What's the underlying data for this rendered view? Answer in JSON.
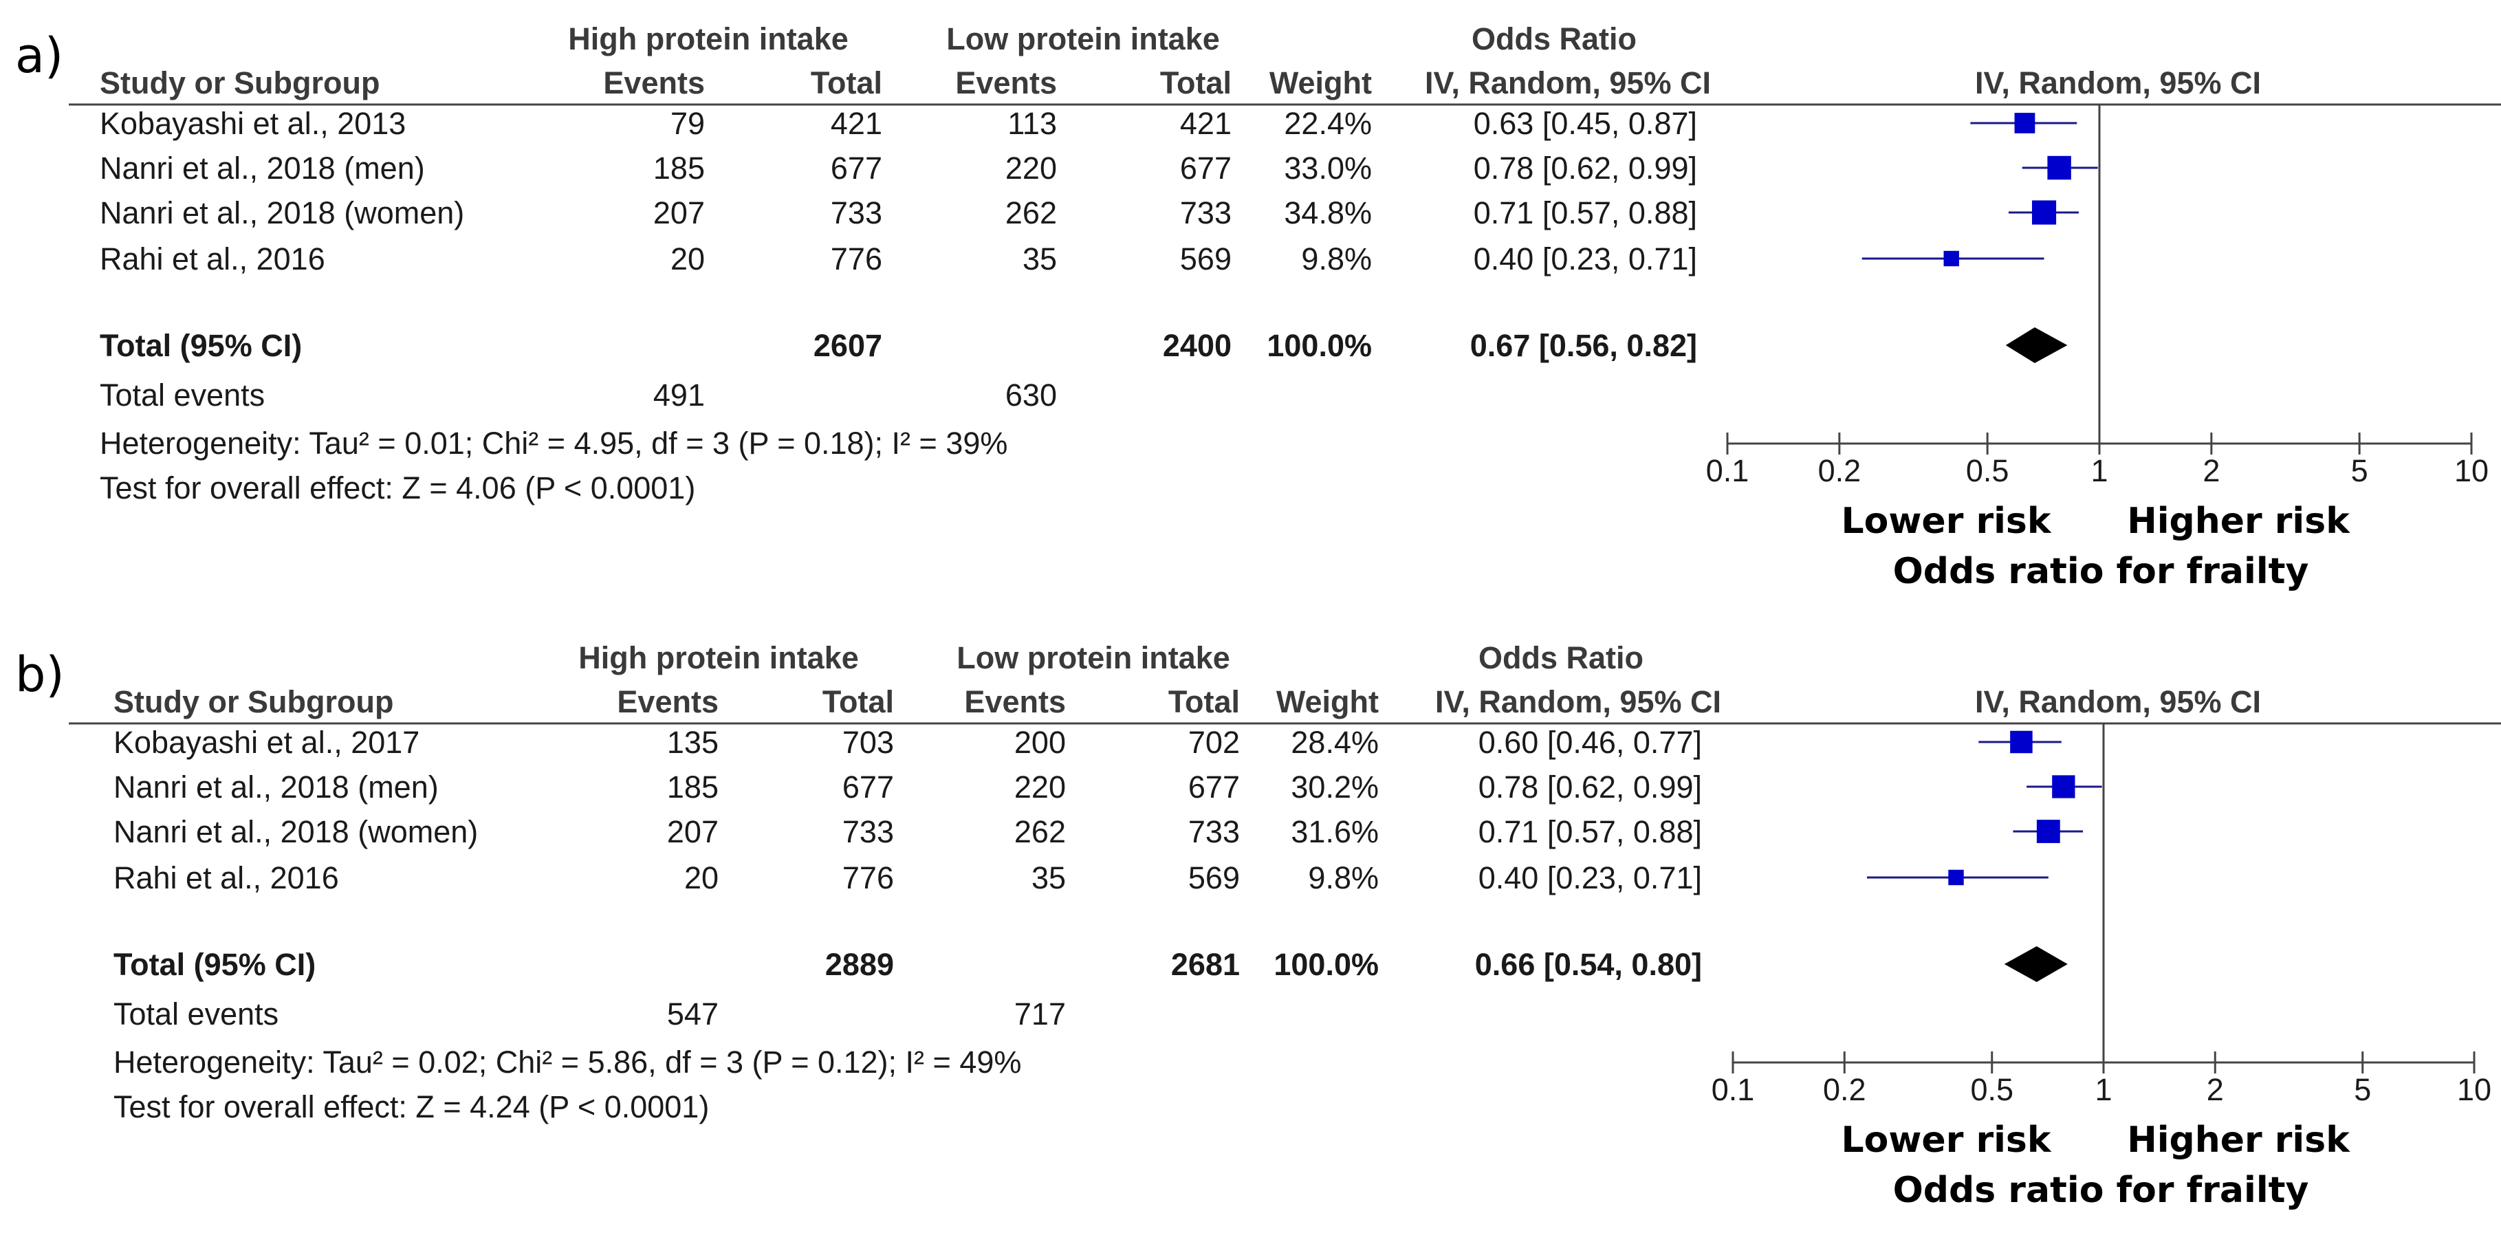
{
  "chart_data": [
    {
      "type": "forest",
      "panel_label": "a)",
      "header": {
        "group_high": "High protein intake",
        "group_low": "Low protein intake",
        "effect_title": "Odds Ratio",
        "study_col": "Study or Subgroup",
        "events_high": "Events",
        "total_high": "Total",
        "events_low": "Events",
        "total_low": "Total",
        "weight": "Weight",
        "method": "IV, Random, 95% CI",
        "plot_method": "IV, Random, 95% CI"
      },
      "studies": [
        {
          "name": "Kobayashi et al., 2013",
          "events_high": "79",
          "total_high": "421",
          "events_low": "113",
          "total_low": "421",
          "weight": "22.4%",
          "ci_text": "0.63 [0.45, 0.87]",
          "or": 0.63,
          "lo": 0.45,
          "hi": 0.87,
          "w": 22.4
        },
        {
          "name": "Nanri et al., 2018 (men)",
          "events_high": "185",
          "total_high": "677",
          "events_low": "220",
          "total_low": "677",
          "weight": "33.0%",
          "ci_text": "0.78 [0.62, 0.99]",
          "or": 0.78,
          "lo": 0.62,
          "hi": 0.99,
          "w": 33.0
        },
        {
          "name": "Nanri et al., 2018 (women)",
          "events_high": "207",
          "total_high": "733",
          "events_low": "262",
          "total_low": "733",
          "weight": "34.8%",
          "ci_text": "0.71 [0.57, 0.88]",
          "or": 0.71,
          "lo": 0.57,
          "hi": 0.88,
          "w": 34.8
        },
        {
          "name": "Rahi et al., 2016",
          "events_high": "20",
          "total_high": "776",
          "events_low": "35",
          "total_low": "569",
          "weight": "9.8%",
          "ci_text": "0.40 [0.23, 0.71]",
          "or": 0.4,
          "lo": 0.23,
          "hi": 0.71,
          "w": 9.8
        }
      ],
      "total": {
        "name": "Total (95% CI)",
        "total_high": "2607",
        "total_low": "2400",
        "weight": "100.0%",
        "ci_text": "0.67 [0.56, 0.82]",
        "or": 0.67,
        "lo": 0.56,
        "hi": 0.82
      },
      "total_events": {
        "label": "Total events",
        "high": "491",
        "low": "630"
      },
      "heterogeneity": "Heterogeneity: Tau² = 0.01; Chi² = 4.95, df = 3 (P = 0.18); I² = 39%",
      "overall_effect": "Test for overall effect: Z = 4.06 (P < 0.0001)",
      "x_axis": {
        "scale": "log",
        "ticks": [
          0.1,
          0.2,
          0.5,
          1,
          2,
          5,
          10
        ],
        "tick_labels": [
          "0.1",
          "0.2",
          "0.5",
          "1",
          "2",
          "5",
          "10"
        ]
      },
      "favours_left": "Lower risk",
      "favours_right": "Higher risk",
      "xlabel": "Odds ratio for frailty"
    },
    {
      "type": "forest",
      "panel_label": "b)",
      "header": {
        "group_high": "High protein intake",
        "group_low": "Low protein intake",
        "effect_title": "Odds Ratio",
        "study_col": "Study or Subgroup",
        "events_high": "Events",
        "total_high": "Total",
        "events_low": "Events",
        "total_low": "Total",
        "weight": "Weight",
        "method": "IV, Random, 95% CI",
        "plot_method": "IV, Random, 95% CI"
      },
      "studies": [
        {
          "name": "Kobayashi et al., 2017",
          "events_high": "135",
          "total_high": "703",
          "events_low": "200",
          "total_low": "702",
          "weight": "28.4%",
          "ci_text": "0.60 [0.46, 0.77]",
          "or": 0.6,
          "lo": 0.46,
          "hi": 0.77,
          "w": 28.4
        },
        {
          "name": "Nanri et al., 2018 (men)",
          "events_high": "185",
          "total_high": "677",
          "events_low": "220",
          "total_low": "677",
          "weight": "30.2%",
          "ci_text": "0.78 [0.62, 0.99]",
          "or": 0.78,
          "lo": 0.62,
          "hi": 0.99,
          "w": 30.2
        },
        {
          "name": "Nanri et al., 2018 (women)",
          "events_high": "207",
          "total_high": "733",
          "events_low": "262",
          "total_low": "733",
          "weight": "31.6%",
          "ci_text": "0.71 [0.57, 0.88]",
          "or": 0.71,
          "lo": 0.57,
          "hi": 0.88,
          "w": 31.6
        },
        {
          "name": "Rahi et al., 2016",
          "events_high": "20",
          "total_high": "776",
          "events_low": "35",
          "total_low": "569",
          "weight": "9.8%",
          "ci_text": "0.40 [0.23, 0.71]",
          "or": 0.4,
          "lo": 0.23,
          "hi": 0.71,
          "w": 9.8
        }
      ],
      "total": {
        "name": "Total (95% CI)",
        "total_high": "2889",
        "total_low": "2681",
        "weight": "100.0%",
        "ci_text": "0.66 [0.54, 0.80]",
        "or": 0.66,
        "lo": 0.54,
        "hi": 0.8
      },
      "total_events": {
        "label": "Total events",
        "high": "547",
        "low": "717"
      },
      "heterogeneity": "Heterogeneity: Tau² = 0.02; Chi² = 5.86, df = 3 (P = 0.12); I² = 49%",
      "overall_effect": "Test for overall effect: Z = 4.24 (P < 0.0001)",
      "x_axis": {
        "scale": "log",
        "ticks": [
          0.1,
          0.2,
          0.5,
          1,
          2,
          5,
          10
        ],
        "tick_labels": [
          "0.1",
          "0.2",
          "0.5",
          "1",
          "2",
          "5",
          "10"
        ]
      },
      "favours_left": "Lower risk",
      "favours_right": "Higher risk",
      "xlabel": "Odds ratio for frailty"
    }
  ],
  "colors": {
    "point": "#0000cc",
    "ci_line": "#1a1a8a",
    "diamond": "#000000",
    "rule": "#444444"
  }
}
